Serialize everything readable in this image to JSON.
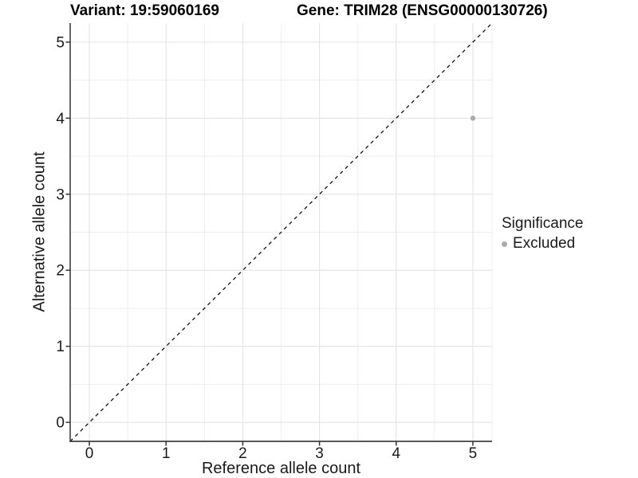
{
  "titles": {
    "variant": "Variant: 19:59060169",
    "gene": "Gene: TRIM28 (ENSG00000130726)"
  },
  "legend": {
    "title": "Significance",
    "items": [
      {
        "label": "Excluded",
        "color": "#ababab"
      }
    ]
  },
  "chart_data": {
    "type": "scatter",
    "title": "Variant: 19:59060169  /  Gene: TRIM28 (ENSG00000130726)",
    "xlabel": "Reference allele count",
    "ylabel": "Alternative allele count",
    "xlim": [
      -0.25,
      5.25
    ],
    "ylim": [
      -0.25,
      5.25
    ],
    "x_ticks": [
      0,
      1,
      2,
      3,
      4,
      5
    ],
    "y_ticks": [
      0,
      1,
      2,
      3,
      4,
      5
    ],
    "minor_grid_step": 0.5,
    "grid": true,
    "legend_position": "right",
    "series": [
      {
        "name": "Excluded",
        "color": "#ababab",
        "points": [
          {
            "x": 5,
            "y": 4
          }
        ]
      }
    ],
    "reference_line": {
      "type": "identity",
      "slope": 1,
      "intercept": 0,
      "style": "dashed",
      "color": "#111111"
    }
  },
  "colors": {
    "grid_major": "#e3e3e3",
    "grid_minor": "#eeeeee",
    "panel_edge": "#ececec",
    "axis_line": "#404040",
    "tick_mark": "#333333",
    "tick_text": "#1a1a1a",
    "background": "#ffffff"
  }
}
